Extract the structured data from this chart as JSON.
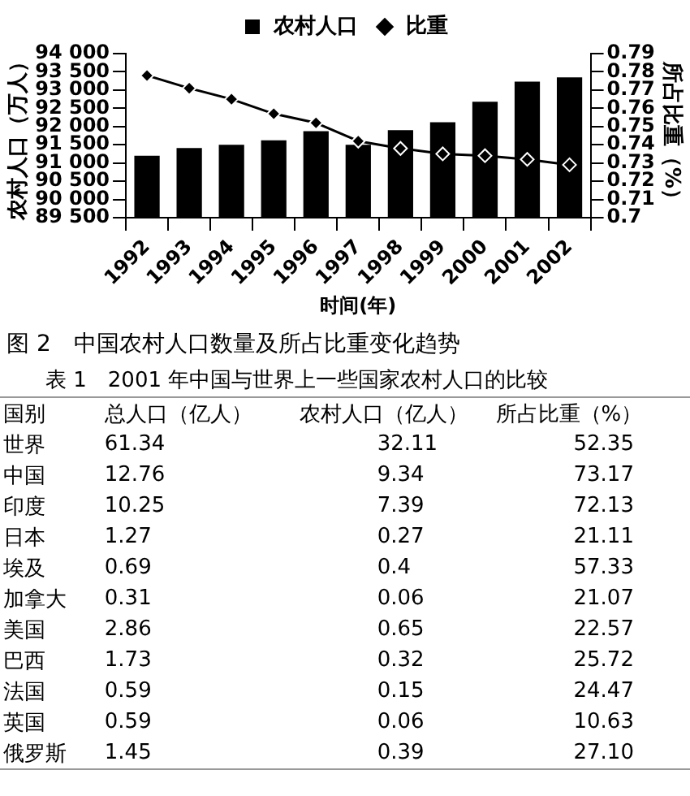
{
  "chart_data": [
    {
      "type": "bar",
      "title": "图 2　中国农村人口数量及所占比重变化趋势",
      "xlabel": "时间(年)",
      "ylabel": "农村人口（万人）",
      "y2label": "所占比重（%）",
      "categories": [
        "1992",
        "1993",
        "1994",
        "1995",
        "1996",
        "1997",
        "1998",
        "1999",
        "2000",
        "2001",
        "2002"
      ],
      "series": [
        {
          "name": "农村人口",
          "type": "bar",
          "color": "#000000",
          "values": [
            91200,
            91410,
            91500,
            91620,
            91870,
            91500,
            91900,
            92120,
            92680,
            93230,
            93350
          ]
        },
        {
          "name": "比重",
          "type": "line",
          "axis": "y2",
          "color": "#000000",
          "marker": "diamond",
          "values": [
            0.778,
            0.771,
            0.765,
            0.757,
            0.752,
            0.742,
            0.738,
            0.735,
            0.734,
            0.732,
            0.729
          ]
        }
      ],
      "ylim": [
        89500,
        94000
      ],
      "yticks": [
        {
          "value": 89500,
          "label": "89 500"
        },
        {
          "value": 90000,
          "label": "90 000"
        },
        {
          "value": 90500,
          "label": "90 500"
        },
        {
          "value": 91000,
          "label": "91 000"
        },
        {
          "value": 91500,
          "label": "91 500"
        },
        {
          "value": 92000,
          "label": "92 000"
        },
        {
          "value": 92500,
          "label": "92 500"
        },
        {
          "value": 93000,
          "label": "93 000"
        },
        {
          "value": 93500,
          "label": "93 500"
        },
        {
          "value": 94000,
          "label": "94 000"
        }
      ],
      "y2lim": [
        0.7,
        0.79
      ],
      "y2ticks": [
        0.7,
        0.71,
        0.72,
        0.73,
        0.74,
        0.75,
        0.76,
        0.77,
        0.78,
        0.79
      ],
      "legend": "top"
    },
    {
      "type": "other",
      "title": "表 1　2001 年中国与世界上一些国家农村人口的比较",
      "ylabel": "国别",
      "categories": [
        "总人口（亿人）",
        "农村人口（亿人）",
        "所占比重（%）"
      ],
      "y_categories": [
        "世界",
        "中国",
        "印度",
        "日本",
        "埃及",
        "加拿大",
        "美国",
        "巴西",
        "法国",
        "英国",
        "俄罗斯"
      ],
      "cell_labels": [
        [
          "61.34",
          "32.11",
          "52.35"
        ],
        [
          "12.76",
          "9.34",
          "73.17"
        ],
        [
          "10.25",
          "7.39",
          "72.13"
        ],
        [
          "1.27",
          "0.27",
          "21.11"
        ],
        [
          "0.69",
          "0.4",
          "57.33"
        ],
        [
          "0.31",
          "0.06",
          "21.07"
        ],
        [
          "2.86",
          "0.65",
          "22.57"
        ],
        [
          "1.73",
          "0.32",
          "25.72"
        ],
        [
          "0.59",
          "0.15",
          "24.47"
        ],
        [
          "0.59",
          "0.06",
          "10.63"
        ],
        [
          "1.45",
          "0.39",
          "27.10"
        ]
      ]
    }
  ]
}
